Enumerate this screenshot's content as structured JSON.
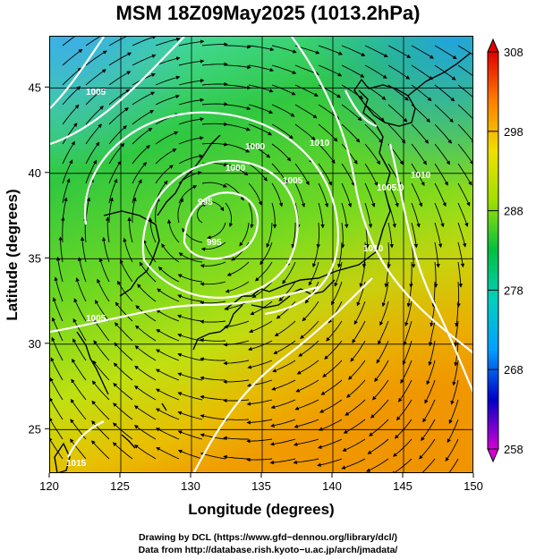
{
  "title": "MSM 18Z09May2025 (1013.2hPa)",
  "x_axis": {
    "label": "Longitude (degrees)",
    "range": [
      120,
      150
    ],
    "ticks": [
      "120",
      "125",
      "130",
      "135",
      "140",
      "145",
      "150"
    ]
  },
  "y_axis": {
    "label": "Latitude  (degrees)",
    "range": [
      22.4,
      48
    ],
    "ticks": [
      "25",
      "30",
      "35",
      "40",
      "45"
    ]
  },
  "colorbar": {
    "min": 258,
    "max": 308,
    "ticks": [
      "308",
      "298",
      "288",
      "278",
      "268",
      "258"
    ],
    "colors": [
      "#d400d4",
      "#0000c8",
      "#00a0ff",
      "#00d0c0",
      "#00c040",
      "#a0e000",
      "#f0e000",
      "#ff8000",
      "#e00000"
    ]
  },
  "contour_labels": [
    "995",
    "995",
    "1000",
    "1000",
    "1005",
    "1005",
    "1005",
    "1005.0",
    "1010",
    "1010",
    "1010",
    "1015"
  ],
  "credits": {
    "line1": "Drawing by DCL (https://www.gfd−dennou.org/library/dcl/)",
    "line2": "Data from http://database.rish.kyoto−u.ac.jp/arch/jmadata/"
  }
}
